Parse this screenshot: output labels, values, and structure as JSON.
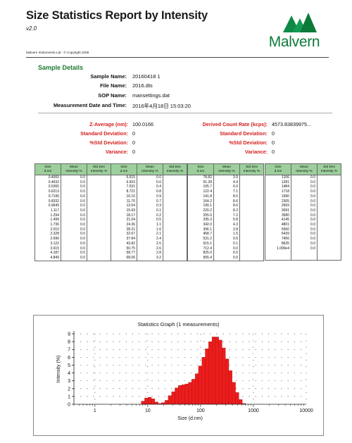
{
  "header": {
    "title": "Size Statistics Report by Intensity",
    "version": "v2.0",
    "copyright": "Malvern Instruments Ltd - © Copyright 2008",
    "logo_text": "Malvern"
  },
  "sample_details": {
    "section_title": "Sample Details",
    "fields": [
      {
        "label": "Sample Name:",
        "value": "20160418 1"
      },
      {
        "label": "File Name:",
        "value": "2016.dts"
      },
      {
        "label": "SOP Name:",
        "value": "mansettings.dat"
      },
      {
        "label": "Measurement Date and Time:",
        "value": "2016年4月18日 15:03:20"
      }
    ]
  },
  "stats": {
    "left": [
      {
        "label": "Z-Average (nm):",
        "value": "100.0166"
      },
      {
        "label": "Standard Deviation:",
        "value": "0"
      },
      {
        "label": "%Std Deviation:",
        "value": "0"
      },
      {
        "label": "Variance:",
        "value": "0"
      }
    ],
    "right": [
      {
        "label": "Derived Count Rate (kcps):",
        "value": "4573.83839975..."
      },
      {
        "label": "Standard Deviation:",
        "value": "0"
      },
      {
        "label": "%Std Deviation:",
        "value": "0"
      },
      {
        "label": "Variance:",
        "value": "0"
      }
    ]
  },
  "tables": [
    {
      "headers": [
        "Size\nd.nm",
        "Mean\nIntensity %",
        "Std Dev\nIntensity %"
      ],
      "size": "0.4000\n0.4632\n0.5365\n0.6213\n0.7195\n0.8332\n0.9649\n1.117\n1.294\n1.499\n1.736\n2.010\n2.328\n2.696\n3.122\n3.615\n4.187\n4.849",
      "mean": "0.0\n0.0\n0.0\n0.0\n0.0\n0.0\n0.0\n0.0\n0.0\n0.0\n0.0\n0.0\n0.0\n0.0\n0.0\n0.0\n0.0\n0.0",
      "std": ""
    },
    {
      "headers": [
        "Size\nd.nm",
        "Mean\nIntensity %",
        "Std Dev\nIntensity %"
      ],
      "size": "5.615\n6.503\n7.531\n8.721\n10.10\n11.70\n13.54\n15.69\n18.17\n21.04\n24.36\n28.21\n32.67\n37.84\n43.82\n50.75\n58.77\n68.06",
      "mean": "0.0\n0.0\n0.4\n0.8\n0.9\n0.7\n0.3\n0.1\n0.2\n0.5\n1.1\n1.6\n2.1\n2.4\n2.5\n2.6\n2.8\n3.2",
      "std": ""
    },
    {
      "headers": [
        "Size\nd.nm",
        "Mean\nIntensity %",
        "Std Dev\nIntensity %"
      ],
      "size": "78.82\n91.28\n105.7\n122.4\n141.8\n164.2\n190.1\n220.2\n255.0\n295.3\n342.0\n396.1\n458.7\n531.2\n615.1\n712.4\n825.0\n955.4",
      "mean": "3.9\n4.9\n6.0\n7.1\n8.0\n8.6\n8.6\n8.2\n7.2\n5.8\n4.3\n2.8\n1.5\n0.6\n0.1\n0.0\n0.0\n0.0",
      "std": ""
    },
    {
      "headers": [
        "Size\nd.nm",
        "Mean\nIntensity %",
        "Std Dev\nIntensity %"
      ],
      "size": "1106\n1281\n1484\n1718\n1990\n2305\n2669\n3091\n3580\n4145\n4801\n5560\n6439\n7456\n8635\n1.000e4",
      "mean": "0.0\n0.0\n0.0\n0.0\n0.0\n0.0\n0.0\n0.0\n0.0\n0.0\n0.0\n0.0\n0.0\n0.0\n0.0\n0.0",
      "std": ""
    }
  ],
  "chart_data": {
    "type": "bar",
    "title": "Statistics Graph (1 measurements)",
    "xlabel": "Size (d.nm)",
    "ylabel": "Intensity (%)",
    "x_scale": "log",
    "xlim": [
      0.4,
      10000
    ],
    "ylim": [
      0,
      9
    ],
    "x_ticks": [
      "1",
      "10",
      "100",
      "1000",
      "10000"
    ],
    "y_ticks": [
      "0",
      "1",
      "2",
      "3",
      "4",
      "5",
      "6",
      "7",
      "8",
      "9"
    ],
    "grid": "dotted",
    "bar_color": "#ee1c1c",
    "x": [
      5.615,
      6.503,
      7.531,
      8.721,
      10.1,
      11.7,
      13.54,
      15.69,
      18.17,
      21.04,
      24.36,
      28.21,
      32.67,
      37.84,
      43.82,
      50.75,
      58.77,
      68.06,
      78.82,
      91.28,
      105.7,
      122.4,
      141.8,
      164.2,
      190.1,
      220.2,
      255.0,
      295.3,
      342.0,
      396.1,
      458.7,
      531.2,
      615.1
    ],
    "values": [
      0.0,
      0.0,
      0.4,
      0.8,
      0.9,
      0.7,
      0.3,
      0.1,
      0.2,
      0.5,
      1.1,
      1.6,
      2.1,
      2.4,
      2.5,
      2.6,
      2.8,
      3.2,
      3.9,
      4.9,
      6.0,
      7.1,
      8.0,
      8.6,
      8.6,
      8.2,
      7.2,
      5.8,
      4.3,
      2.8,
      1.5,
      0.6,
      0.1
    ]
  }
}
